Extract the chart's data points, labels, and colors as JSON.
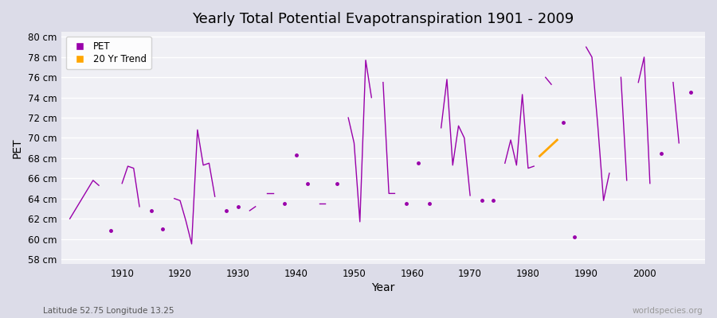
{
  "title": "Yearly Total Potential Evapotranspiration 1901 - 2009",
  "xlabel": "Year",
  "ylabel": "PET",
  "bg_outer": "#dcdce8",
  "bg_plot": "#f0f0f5",
  "grid_color": "#ffffff",
  "pet_color": "#9900aa",
  "trend_color": "#ffa500",
  "pet_segments": [
    [
      1901,
      62
    ],
    [
      1905,
      65.8
    ],
    [
      1906,
      65.3
    ],
    null,
    [
      1908,
      60.8
    ],
    null,
    [
      1910,
      65.5
    ],
    [
      1911,
      67.2
    ],
    [
      1912,
      67.0
    ],
    [
      1913,
      63.2
    ],
    null,
    [
      1915,
      62.8
    ],
    null,
    [
      1917,
      61.0
    ],
    null,
    [
      1919,
      64.0
    ],
    [
      1920,
      63.8
    ],
    [
      1921,
      61.8
    ],
    [
      1922,
      59.5
    ],
    [
      1923,
      70.8
    ],
    [
      1924,
      67.3
    ],
    [
      1925,
      67.5
    ],
    [
      1926,
      64.2
    ],
    null,
    [
      1928,
      62.8
    ],
    null,
    [
      1930,
      63.2
    ],
    null,
    [
      1932,
      62.8
    ],
    [
      1933,
      63.2
    ],
    null,
    [
      1935,
      64.5
    ],
    [
      1936,
      64.5
    ],
    null,
    [
      1938,
      63.5
    ],
    null,
    [
      1940,
      68.3
    ],
    null,
    [
      1942,
      65.5
    ],
    null,
    [
      1944,
      63.5
    ],
    [
      1945,
      63.5
    ],
    null,
    [
      1947,
      65.5
    ],
    null,
    [
      1949,
      72.0
    ],
    [
      1950,
      69.5
    ],
    [
      1951,
      61.7
    ],
    [
      1952,
      77.7
    ],
    [
      1953,
      74.0
    ],
    null,
    [
      1955,
      75.5
    ],
    [
      1956,
      64.5
    ],
    [
      1957,
      64.5
    ],
    null,
    [
      1959,
      63.5
    ],
    null,
    [
      1961,
      67.5
    ],
    null,
    [
      1963,
      63.5
    ],
    null,
    [
      1965,
      71.0
    ],
    [
      1966,
      75.8
    ],
    [
      1967,
      67.3
    ],
    [
      1968,
      71.2
    ],
    [
      1969,
      70.0
    ],
    [
      1970,
      64.3
    ],
    null,
    [
      1972,
      63.8
    ],
    null,
    [
      1974,
      63.8
    ],
    null,
    [
      1976,
      67.5
    ],
    [
      1977,
      69.8
    ],
    [
      1978,
      67.3
    ],
    [
      1979,
      74.3
    ],
    [
      1980,
      67.0
    ],
    [
      1981,
      67.2
    ],
    null,
    [
      1983,
      76.0
    ],
    [
      1984,
      75.3
    ],
    null,
    [
      1986,
      71.5
    ],
    null,
    [
      1988,
      60.2
    ],
    null,
    [
      1990,
      79.0
    ],
    [
      1991,
      78.0
    ],
    [
      1992,
      71.3
    ],
    [
      1993,
      63.8
    ],
    [
      1994,
      66.5
    ],
    null,
    [
      1996,
      76.0
    ],
    [
      1997,
      65.8
    ],
    null,
    [
      1999,
      75.5
    ],
    [
      2000,
      78.0
    ],
    [
      2001,
      65.5
    ],
    null,
    [
      2003,
      68.5
    ],
    null,
    [
      2005,
      75.5
    ],
    [
      2006,
      69.5
    ],
    null,
    [
      2008,
      74.5
    ]
  ],
  "trend_years": [
    1982,
    1985
  ],
  "trend_values": [
    68.2,
    69.8
  ],
  "ylim": [
    57.5,
    80.5
  ],
  "yticks": [
    58,
    60,
    62,
    64,
    66,
    68,
    70,
    72,
    74,
    76,
    78,
    80
  ],
  "ytick_labels": [
    "58 cm",
    "60 cm",
    "62 cm",
    "64 cm",
    "66 cm",
    "68 cm",
    "70 cm",
    "72 cm",
    "74 cm",
    "76 cm",
    "78 cm",
    "80 cm"
  ],
  "xlim": [
    1899.5,
    2010.5
  ],
  "xticks": [
    1910,
    1920,
    1930,
    1940,
    1950,
    1960,
    1970,
    1980,
    1990,
    2000
  ],
  "footer_left": "Latitude 52.75 Longitude 13.25",
  "footer_right": "worldspecies.org"
}
